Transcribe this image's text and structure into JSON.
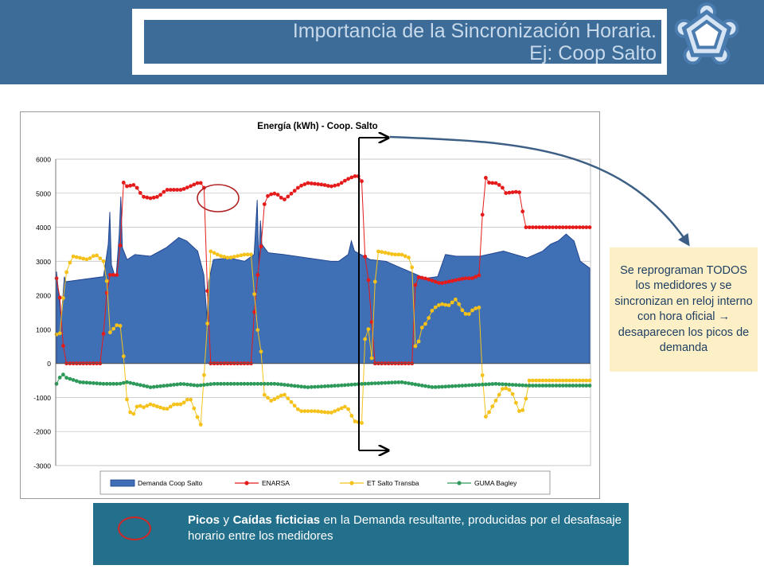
{
  "header": {
    "title_line1": "Importancia de la Sincronización Horaria.",
    "title_line2": "Ej: Coop Salto",
    "logo_icon": "star-emblem-icon"
  },
  "note": {
    "text": "Se reprograman TODOS los medidores y se sincronizan en reloj interno con hora oficial → desaparecen los picos de demanda"
  },
  "legend_box": {
    "bold1": "Picos",
    "connector": " y ",
    "bold2": "Caídas ficticias",
    "rest": " en la Demanda resultante, producidas por el desafasaje horario entre los medidores"
  },
  "chart_data": {
    "type": "line",
    "title": "Energía (kWh)  - Coop. Salto",
    "xlabel": "",
    "ylabel": "",
    "ylim": [
      -3000,
      6000
    ],
    "yticks": [
      6000,
      5000,
      4000,
      3000,
      2000,
      1000,
      0,
      -1000,
      -2000,
      -3000
    ],
    "grid": true,
    "legend_position": "bottom",
    "n_points": 160,
    "series": [
      {
        "name": "Demanda Coop Salto",
        "style": "area",
        "color": "#3f6fb5",
        "segments": [
          [
            0,
            2700
          ],
          [
            3,
            1300
          ],
          [
            5,
            2550
          ],
          [
            6,
            2400
          ],
          [
            30,
            2550
          ],
          [
            33,
            3500
          ],
          [
            34,
            4450
          ],
          [
            35,
            2900
          ],
          [
            37,
            2600
          ],
          [
            38,
            2550
          ],
          [
            40,
            3800
          ],
          [
            41,
            4900
          ],
          [
            42,
            3400
          ],
          [
            45,
            3050
          ],
          [
            50,
            3200
          ],
          [
            60,
            3150
          ],
          [
            70,
            3400
          ],
          [
            78,
            3700
          ],
          [
            83,
            3600
          ],
          [
            90,
            3300
          ],
          [
            94,
            2600
          ],
          [
            96,
            1300
          ],
          [
            97,
            2400
          ],
          [
            100,
            3050
          ],
          [
            110,
            3100
          ],
          [
            120,
            3000
          ],
          [
            126,
            3200
          ],
          [
            128,
            4800
          ],
          [
            129,
            2900
          ],
          [
            130,
            4200
          ],
          [
            131,
            3500
          ],
          [
            135,
            3250
          ],
          [
            145,
            3200
          ],
          [
            160,
            3100
          ],
          [
            175,
            3000
          ],
          [
            180,
            3000
          ],
          [
            186,
            3200
          ],
          [
            188,
            3600
          ],
          [
            190,
            3300
          ],
          [
            200,
            3050
          ],
          [
            210,
            3000
          ],
          [
            220,
            2800
          ],
          [
            235,
            2500
          ],
          [
            243,
            2550
          ],
          [
            248,
            3200
          ],
          [
            255,
            3150
          ],
          [
            270,
            3150
          ],
          [
            285,
            3300
          ],
          [
            300,
            3100
          ],
          [
            310,
            3300
          ],
          [
            315,
            3500
          ],
          [
            320,
            3600
          ],
          [
            325,
            3800
          ],
          [
            330,
            3600
          ],
          [
            334,
            3000
          ],
          [
            340,
            2800
          ]
        ]
      },
      {
        "name": "ENARSA",
        "style": "markers",
        "color": "#e51a1a",
        "segments": [
          [
            0,
            2500
          ],
          [
            3,
            1700
          ],
          [
            4,
            600
          ],
          [
            6,
            0
          ],
          [
            28,
            0
          ],
          [
            30,
            900
          ],
          [
            33,
            2600
          ],
          [
            40,
            2600
          ],
          [
            42,
            5350
          ],
          [
            45,
            5200
          ],
          [
            50,
            5250
          ],
          [
            55,
            4900
          ],
          [
            60,
            4850
          ],
          [
            65,
            4900
          ],
          [
            70,
            5100
          ],
          [
            80,
            5100
          ],
          [
            90,
            5300
          ],
          [
            94,
            5300
          ],
          [
            95,
            3700
          ],
          [
            96,
            2400
          ],
          [
            98,
            0
          ],
          [
            125,
            0
          ],
          [
            127,
            2600
          ],
          [
            130,
            2600
          ],
          [
            131,
            4500
          ],
          [
            135,
            4950
          ],
          [
            140,
            5000
          ],
          [
            145,
            4800
          ],
          [
            150,
            5000
          ],
          [
            155,
            5200
          ],
          [
            160,
            5300
          ],
          [
            170,
            5250
          ],
          [
            175,
            5200
          ],
          [
            180,
            5250
          ],
          [
            185,
            5400
          ],
          [
            190,
            5500
          ],
          [
            194,
            5500
          ],
          [
            196,
            5000
          ],
          [
            197,
            2450
          ],
          [
            200,
            2450
          ],
          [
            202,
            0
          ],
          [
            227,
            0
          ],
          [
            229,
            2550
          ],
          [
            235,
            2500
          ],
          [
            245,
            2350
          ],
          [
            250,
            2400
          ],
          [
            255,
            2450
          ],
          [
            260,
            2500
          ],
          [
            265,
            2500
          ],
          [
            270,
            2600
          ],
          [
            272,
            4850
          ],
          [
            273,
            5500
          ],
          [
            276,
            5300
          ],
          [
            280,
            5300
          ],
          [
            284,
            5200
          ],
          [
            286,
            5000
          ],
          [
            295,
            5050
          ],
          [
            299,
            4000
          ],
          [
            300,
            4000
          ]
        ]
      },
      {
        "name": "ET Salto Transba",
        "style": "markers",
        "color": "#f5c21b",
        "segments": [
          [
            0,
            850
          ],
          [
            3,
            900
          ],
          [
            5,
            2500
          ],
          [
            10,
            3150
          ],
          [
            15,
            3100
          ],
          [
            20,
            3050
          ],
          [
            25,
            3200
          ],
          [
            30,
            3000
          ],
          [
            32,
            2550
          ],
          [
            33,
            850
          ],
          [
            38,
            1100
          ],
          [
            40,
            1200
          ],
          [
            42,
            900
          ],
          [
            44,
            -900
          ],
          [
            48,
            -1600
          ],
          [
            52,
            -1200
          ],
          [
            55,
            -1300
          ],
          [
            60,
            -1200
          ],
          [
            70,
            -1350
          ],
          [
            75,
            -1200
          ],
          [
            80,
            -1200
          ],
          [
            85,
            -1000
          ],
          [
            90,
            -1600
          ],
          [
            92,
            -1800
          ],
          [
            94,
            -400
          ],
          [
            96,
            900
          ],
          [
            98,
            3300
          ],
          [
            105,
            3150
          ],
          [
            110,
            3100
          ],
          [
            115,
            3150
          ],
          [
            120,
            3200
          ],
          [
            125,
            3200
          ],
          [
            127,
            1200
          ],
          [
            130,
            700
          ],
          [
            132,
            -900
          ],
          [
            137,
            -1100
          ],
          [
            145,
            -900
          ],
          [
            155,
            -1400
          ],
          [
            165,
            -1400
          ],
          [
            175,
            -1450
          ],
          [
            185,
            -1250
          ],
          [
            190,
            -1700
          ],
          [
            195,
            -1750
          ],
          [
            197,
            1100
          ],
          [
            199,
            1000
          ],
          [
            200,
            -900
          ],
          [
            204,
            3300
          ],
          [
            210,
            3250
          ],
          [
            215,
            3200
          ],
          [
            220,
            3200
          ],
          [
            225,
            3100
          ],
          [
            228,
            2600
          ],
          [
            229,
            0
          ],
          [
            232,
            1000
          ],
          [
            236,
            1200
          ],
          [
            240,
            1600
          ],
          [
            245,
            1750
          ],
          [
            250,
            1700
          ],
          [
            255,
            1900
          ],
          [
            258,
            1600
          ],
          [
            262,
            1400
          ],
          [
            266,
            1600
          ],
          [
            270,
            1650
          ],
          [
            271,
            1400
          ],
          [
            272,
            -1650
          ],
          [
            275,
            -1500
          ],
          [
            280,
            -1100
          ],
          [
            285,
            -700
          ],
          [
            290,
            -800
          ],
          [
            295,
            -1400
          ],
          [
            299,
            -1350
          ],
          [
            300,
            -500
          ]
        ]
      },
      {
        "name": "GUMA Bagley",
        "style": "markers",
        "color": "#2e9a5a",
        "segments": [
          [
            0,
            -600
          ],
          [
            2,
            -450
          ],
          [
            3,
            -200
          ],
          [
            5,
            -400
          ],
          [
            15,
            -550
          ],
          [
            30,
            -600
          ],
          [
            40,
            -600
          ],
          [
            45,
            -550
          ],
          [
            60,
            -700
          ],
          [
            80,
            -600
          ],
          [
            90,
            -650
          ],
          [
            100,
            -600
          ],
          [
            140,
            -600
          ],
          [
            160,
            -700
          ],
          [
            180,
            -650
          ],
          [
            195,
            -600
          ],
          [
            220,
            -550
          ],
          [
            240,
            -700
          ],
          [
            260,
            -650
          ],
          [
            280,
            -600
          ],
          [
            300,
            -650
          ]
        ]
      }
    ]
  }
}
